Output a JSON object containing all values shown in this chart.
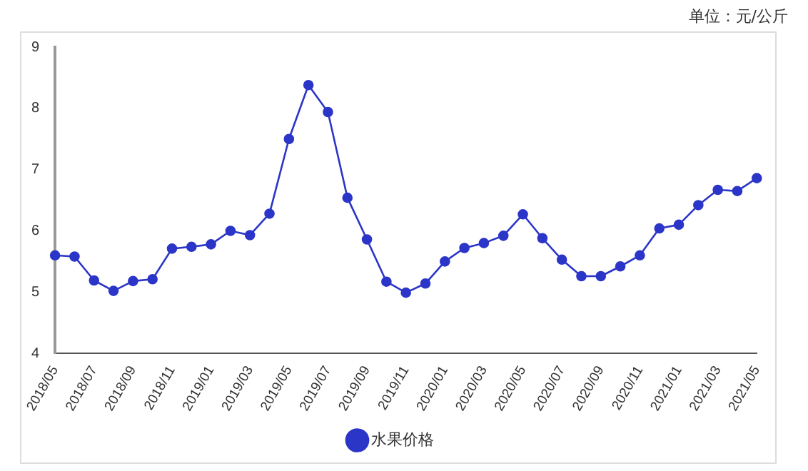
{
  "chart_data": {
    "type": "line",
    "annotations": [
      "单位：元/公斤"
    ],
    "categories": [
      "2018/05",
      null,
      "2018/07",
      null,
      "2018/09",
      null,
      "2018/11",
      null,
      "2019/01",
      null,
      "2019/03",
      null,
      "2019/05",
      null,
      "2019/07",
      null,
      "2019/09",
      null,
      "2019/11",
      null,
      "2020/01",
      null,
      "2020/03",
      null,
      "2020/05",
      null,
      "2020/07",
      null,
      "2020/09",
      null,
      "2020/11",
      null,
      "2021/01",
      null,
      "2021/03",
      null,
      "2021/05"
    ],
    "series": [
      {
        "name": "水果价格",
        "color": "#2b35c8",
        "values": [
          5.6,
          5.58,
          5.19,
          5.02,
          5.18,
          5.21,
          5.71,
          5.74,
          5.78,
          6.0,
          5.93,
          6.28,
          7.5,
          8.38,
          7.94,
          6.54,
          5.86,
          5.17,
          4.99,
          5.14,
          5.5,
          5.72,
          5.8,
          5.92,
          6.27,
          5.88,
          5.53,
          5.26,
          5.26,
          5.42,
          5.6,
          6.04,
          6.1,
          6.42,
          6.67,
          6.65,
          6.86
        ]
      }
    ],
    "ylim": [
      4,
      9
    ],
    "yticks": [
      4,
      5,
      6,
      7,
      8,
      9
    ],
    "grid": false,
    "legend": "bottom",
    "marker": "circle",
    "line_style": "solid"
  }
}
